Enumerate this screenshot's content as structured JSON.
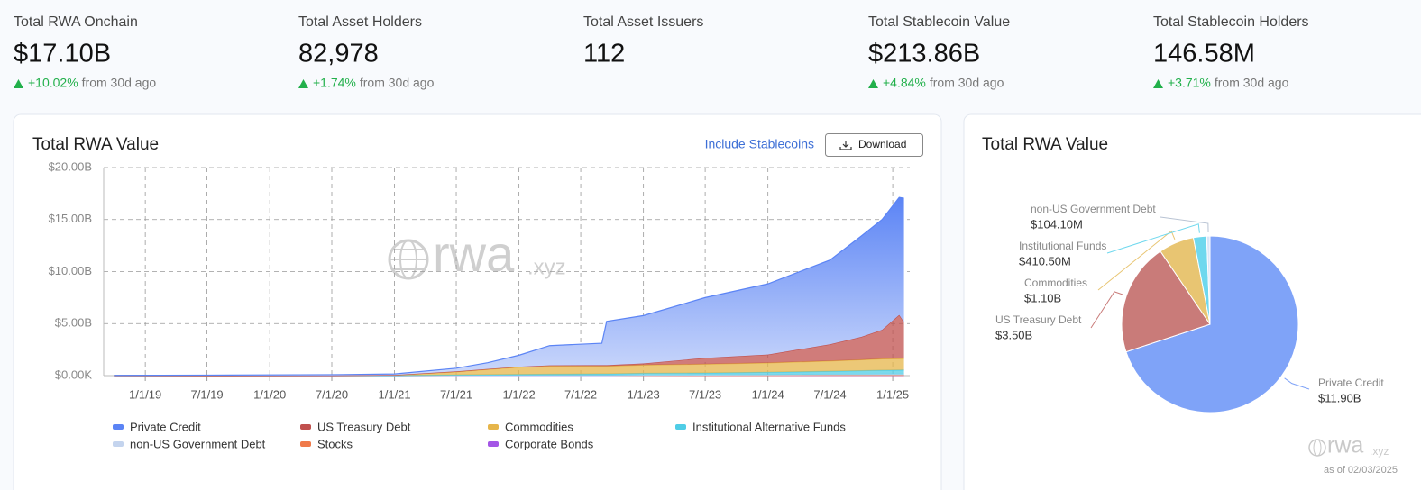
{
  "stats": [
    {
      "label": "Total RWA Onchain",
      "value": "$17.10B",
      "change": "+10.02%",
      "note": "from 30d ago"
    },
    {
      "label": "Total Asset Holders",
      "value": "82,978",
      "change": "+1.74%",
      "note": "from 30d ago"
    },
    {
      "label": "Total Asset Issuers",
      "value": "112"
    },
    {
      "label": "Total Stablecoin Value",
      "value": "$213.86B",
      "change": "+4.84%",
      "note": "from 30d ago"
    },
    {
      "label": "Total Stablecoin Holders",
      "value": "146.58M",
      "change": "+3.71%",
      "note": "from 30d ago"
    }
  ],
  "chart_data": [
    {
      "type": "area",
      "stacked": true,
      "title": "Total RWA Value",
      "toggle": "Include Stablecoins",
      "download": "Download",
      "watermark": "rwa",
      "watermark_domain": ".xyz",
      "x": [
        "2018-10-01",
        "2019-07-01",
        "2020-07-01",
        "2021-01-01",
        "2021-07-01",
        "2021-10-01",
        "2022-01-01",
        "2022-04-01",
        "2022-09-01",
        "2022-09-15",
        "2023-01-01",
        "2023-07-01",
        "2024-01-01",
        "2024-07-01",
        "2024-10-01",
        "2024-12-01",
        "2025-01-20",
        "2025-02-03"
      ],
      "xlim": [
        "2018-09-01",
        "2025-02-20"
      ],
      "xticks": [
        {
          "value": "2019-01-01",
          "label": "1/1/19"
        },
        {
          "value": "2019-07-01",
          "label": "7/1/19"
        },
        {
          "value": "2020-01-01",
          "label": "1/1/20"
        },
        {
          "value": "2020-07-01",
          "label": "7/1/20"
        },
        {
          "value": "2021-01-01",
          "label": "1/1/21"
        },
        {
          "value": "2021-07-01",
          "label": "7/1/21"
        },
        {
          "value": "2022-01-01",
          "label": "1/1/22"
        },
        {
          "value": "2022-07-01",
          "label": "7/1/22"
        },
        {
          "value": "2023-01-01",
          "label": "1/1/23"
        },
        {
          "value": "2023-07-01",
          "label": "7/1/23"
        },
        {
          "value": "2024-01-01",
          "label": "1/1/24"
        },
        {
          "value": "2024-07-01",
          "label": "7/1/24"
        },
        {
          "value": "2025-01-01",
          "label": "1/1/25"
        }
      ],
      "ylim": [
        0,
        20
      ],
      "yticks": [
        {
          "value": 0,
          "label": "$0.00K"
        },
        {
          "value": 5,
          "label": "$5.00B"
        },
        {
          "value": 10,
          "label": "$10.00B"
        },
        {
          "value": 15,
          "label": "$15.00B"
        },
        {
          "value": 20,
          "label": "$20.00B"
        }
      ],
      "grid": true,
      "series": [
        {
          "name": "Private Credit",
          "color": "#5b84f5",
          "values": [
            0.02,
            0.05,
            0.08,
            0.1,
            0.3,
            0.6,
            1.1,
            1.9,
            2.1,
            4.2,
            4.6,
            5.8,
            6.8,
            8.1,
            9.7,
            10.6,
            11.3,
            11.9
          ]
        },
        {
          "name": "US Treasury Debt",
          "color": "#c0504d",
          "values": [
            0,
            0,
            0,
            0,
            0.05,
            0.05,
            0.05,
            0.05,
            0.1,
            0.1,
            0.15,
            0.6,
            0.8,
            1.6,
            2.2,
            2.8,
            4.2,
            3.5
          ]
        },
        {
          "name": "Commodities",
          "color": "#e6b54a",
          "values": [
            0,
            0,
            0.01,
            0.05,
            0.3,
            0.5,
            0.7,
            0.8,
            0.75,
            0.75,
            0.8,
            0.85,
            0.9,
            1.0,
            1.05,
            1.1,
            1.1,
            1.1
          ]
        },
        {
          "name": "Institutional Alternative Funds",
          "color": "#4fcde6",
          "values": [
            0,
            0,
            0,
            0.01,
            0.05,
            0.08,
            0.1,
            0.12,
            0.15,
            0.15,
            0.18,
            0.2,
            0.25,
            0.3,
            0.35,
            0.38,
            0.4,
            0.41
          ]
        },
        {
          "name": "non-US Government Debt",
          "color": "#c4d4ee",
          "values": [
            0,
            0,
            0,
            0,
            0,
            0,
            0,
            0,
            0,
            0,
            0.02,
            0.03,
            0.05,
            0.08,
            0.09,
            0.1,
            0.1,
            0.104
          ]
        },
        {
          "name": "Stocks",
          "color": "#f07a4a",
          "values": [
            0,
            0,
            0,
            0,
            0.01,
            0.01,
            0.01,
            0.01,
            0.01,
            0.01,
            0.01,
            0.01,
            0.01,
            0.02,
            0.02,
            0.02,
            0.02,
            0.02
          ]
        },
        {
          "name": "Corporate Bonds",
          "color": "#a456e6",
          "values": [
            0,
            0,
            0,
            0,
            0,
            0,
            0,
            0,
            0,
            0,
            0.01,
            0.01,
            0.01,
            0.01,
            0.01,
            0.01,
            0.01,
            0.01
          ]
        }
      ]
    },
    {
      "type": "pie",
      "title": "Total RWA Value",
      "watermark": "rwa",
      "watermark_domain": ".xyz",
      "as_of": "as of 02/03/2025",
      "categories": [
        "Private Credit",
        "US Treasury Debt",
        "Commodities",
        "Institutional Funds",
        "non-US Government Debt"
      ],
      "values": [
        11.9,
        3.5,
        1.1,
        0.4105,
        0.1041
      ],
      "value_labels": [
        "$11.90B",
        "$3.50B",
        "$1.10B",
        "$410.50M",
        "$104.10M"
      ],
      "colors": [
        "#7fa3f8",
        "#c97b79",
        "#e8c572",
        "#6fd8ee",
        "#dbe6f7"
      ]
    }
  ]
}
